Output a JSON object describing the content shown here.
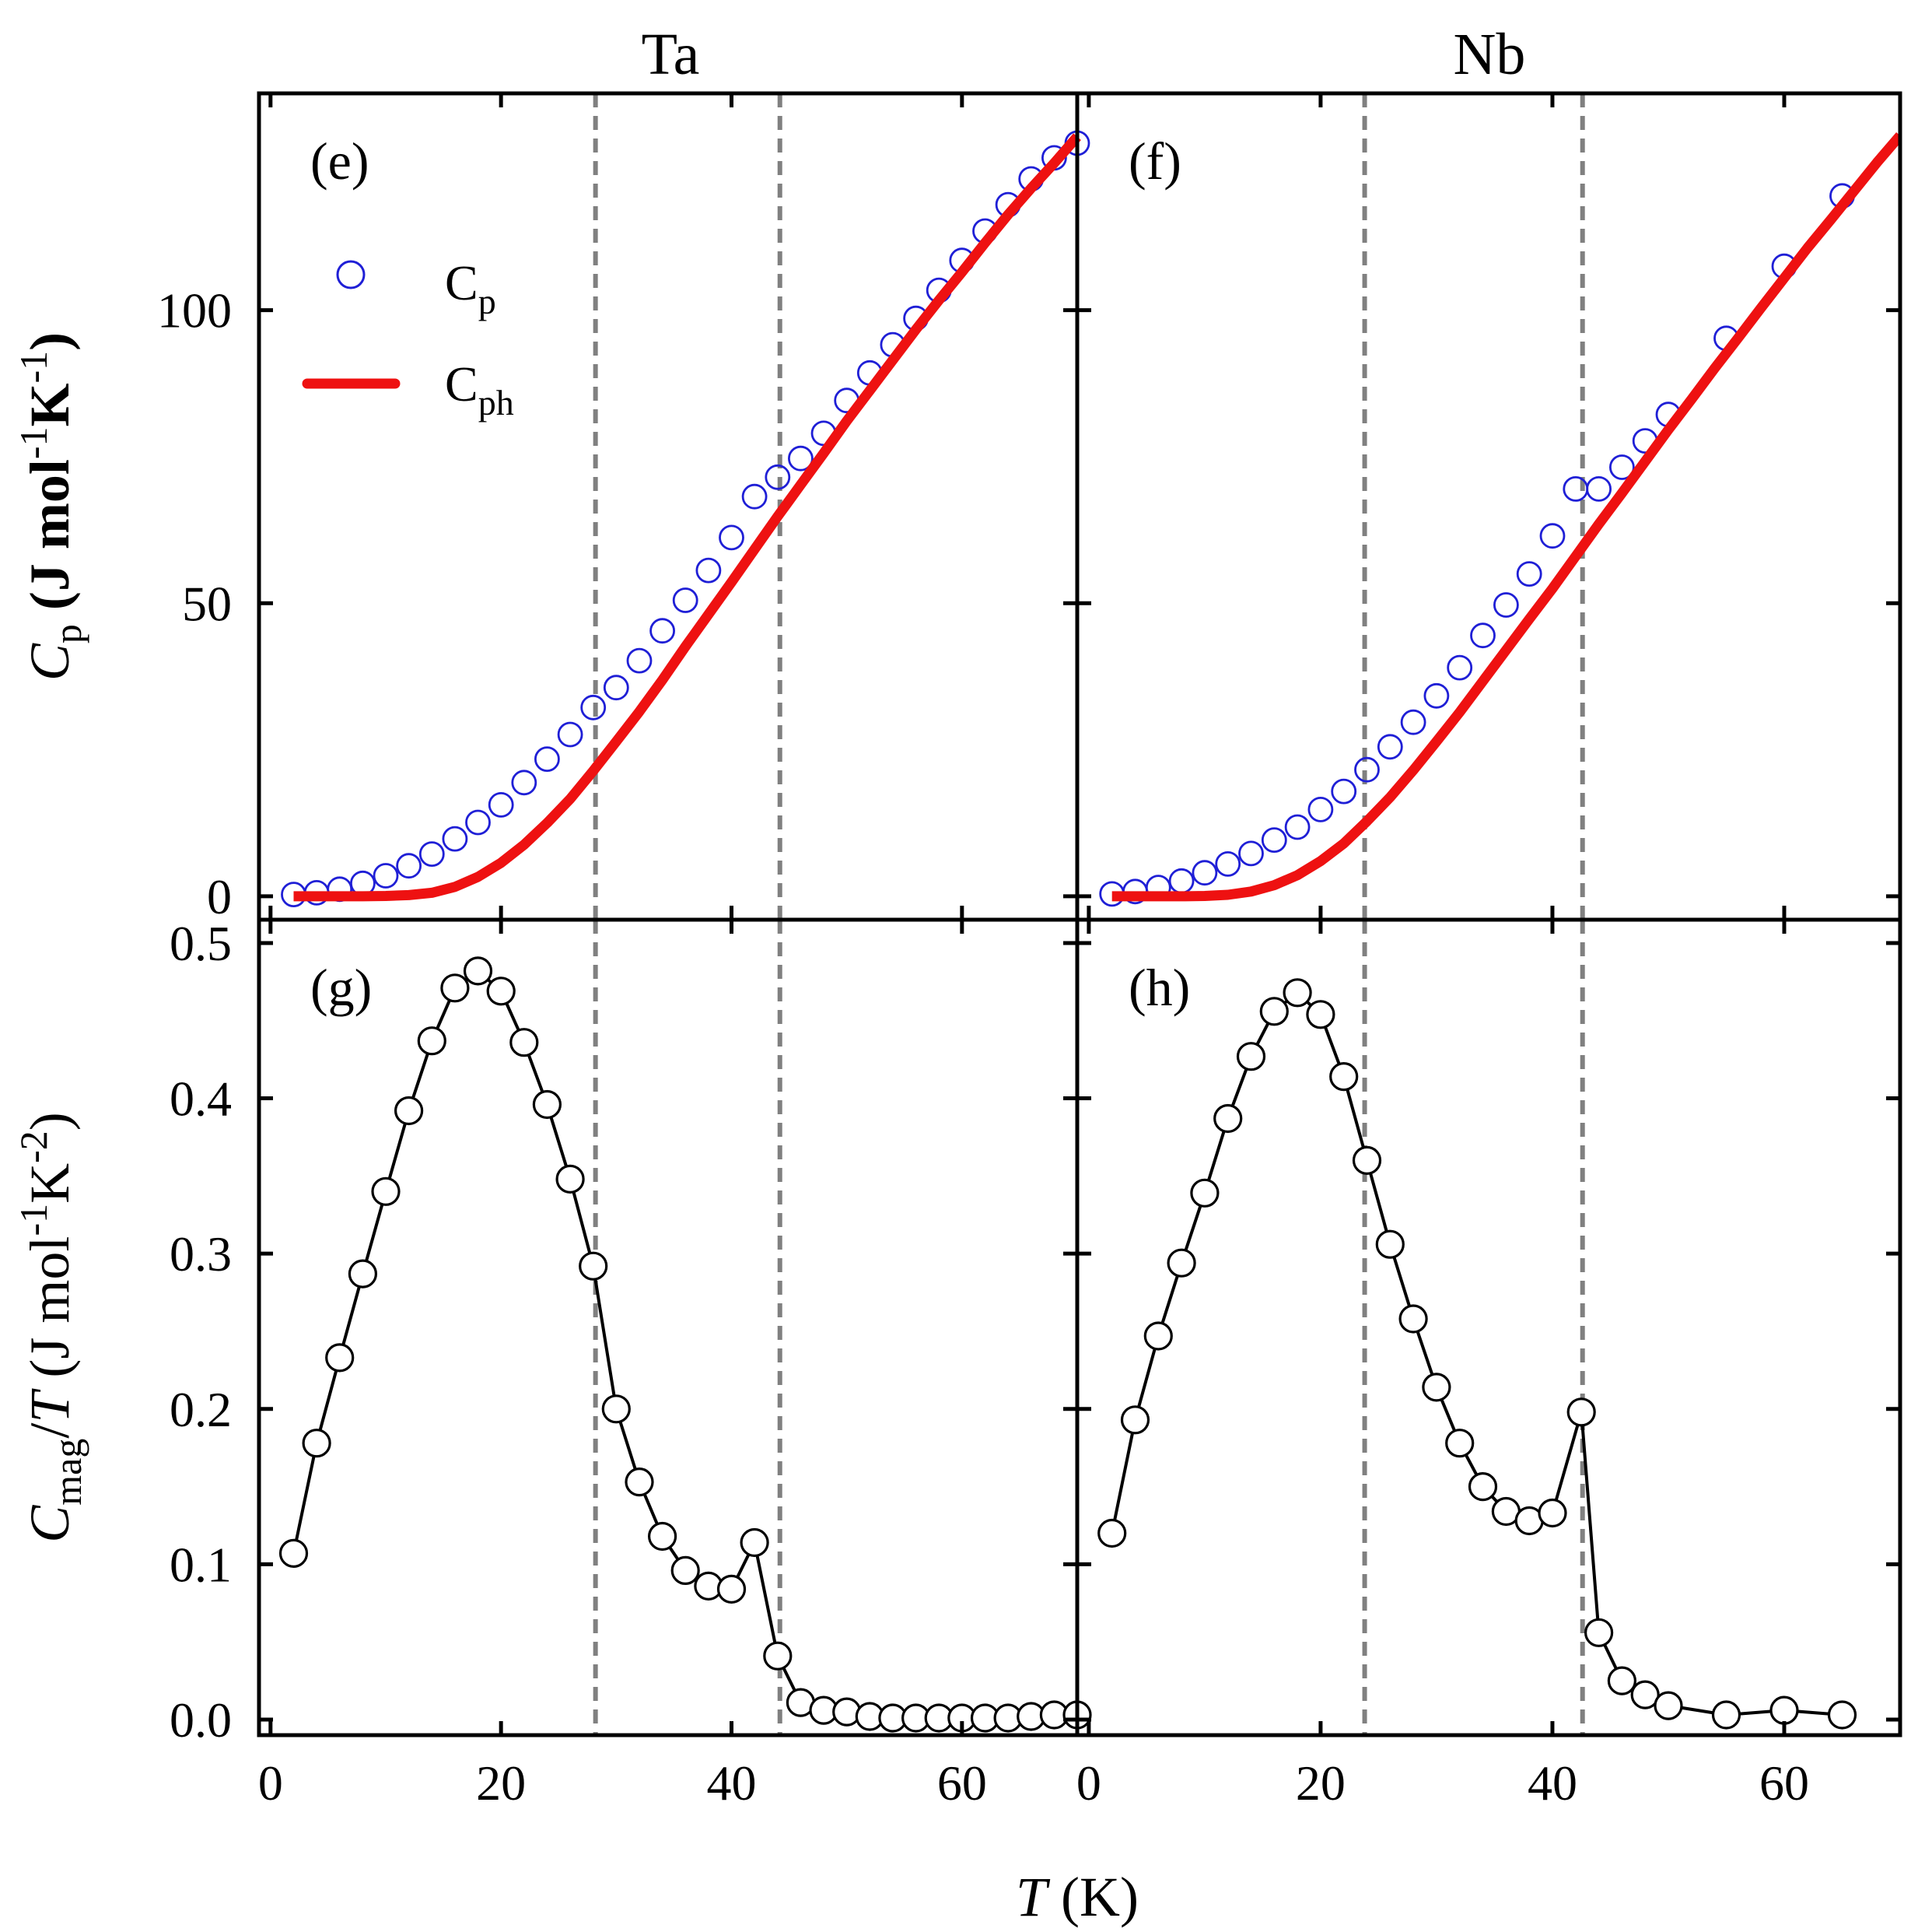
{
  "chart_data": {
    "type": "scatter",
    "columns": [
      "Ta",
      "Nb"
    ],
    "xlabel": {
      "italic": "T",
      "rest": " (K)"
    },
    "x_range": [
      -1,
      70
    ],
    "x_ticks": [
      0,
      20,
      40,
      60
    ],
    "top_row": {
      "ylabel": {
        "italic": "C",
        "sub": "p",
        "rest": " (J mol",
        "sup1": "-1",
        "rest2": "K",
        "sup2": "-1",
        "rest3": ")"
      },
      "y_range": [
        -4,
        137
      ],
      "y_ticks": [
        0,
        50,
        100
      ],
      "legend": [
        {
          "symbol": "open-circle",
          "label": "C",
          "sub": "p",
          "color": "#1f1fd6"
        },
        {
          "symbol": "line",
          "label": "C",
          "sub": "ph",
          "color": "#ee1111"
        }
      ]
    },
    "bottom_row": {
      "ylabel": {
        "italic": "C",
        "sub": "mag",
        "rest": "/",
        "italic2": "T",
        "rest2": " (J mol",
        "sup1": "-1",
        "rest3": "K",
        "sup2": "-2",
        "rest4": ")"
      },
      "y_range": [
        -0.01,
        0.515
      ],
      "y_ticks": [
        0.0,
        0.1,
        0.2,
        0.3,
        0.4,
        0.5
      ],
      "y_tick_labels": [
        "0.0",
        "0.1",
        "0.2",
        "0.3",
        "0.4",
        "0.5"
      ]
    },
    "panels": [
      {
        "id": "e",
        "label": "(e)",
        "column": "Ta",
        "row": "top",
        "dashed_x": [
          28.2,
          44.2
        ],
        "series": [
          {
            "name": "Cp",
            "kind": "markers",
            "color": "#1f1fd6",
            "x": [
              2,
              4,
              6,
              8,
              10,
              12,
              14,
              16,
              18,
              20,
              22,
              24,
              26,
              28,
              30,
              32,
              34,
              36,
              38,
              40,
              42,
              44,
              46,
              48,
              50,
              52,
              54,
              56,
              58,
              60,
              62,
              64,
              66,
              68,
              70
            ],
            "y": [
              0.3,
              0.6,
              1.2,
              2.2,
              3.5,
              5.2,
              7.2,
              9.8,
              12.6,
              15.6,
              19.4,
              23.4,
              27.6,
              32.2,
              35.6,
              40.2,
              45.3,
              50.5,
              55.6,
              61.2,
              68.2,
              71.5,
              74.7,
              79.0,
              84.6,
              89.3,
              94.1,
              98.6,
              103.4,
              108.5,
              113.5,
              118.0,
              122.4,
              126.0,
              128.5
            ]
          },
          {
            "name": "Cph",
            "kind": "line",
            "color": "#ee1111",
            "x": [
              2,
              4,
              6,
              8,
              10,
              12,
              14,
              16,
              18,
              20,
              22,
              24,
              26,
              28,
              30,
              32,
              34,
              36,
              38,
              40,
              42,
              44,
              46,
              48,
              50,
              52,
              54,
              56,
              58,
              60,
              62,
              64,
              66,
              68,
              70
            ],
            "y": [
              0,
              0,
              0,
              0,
              0.05,
              0.2,
              0.6,
              1.6,
              3.3,
              5.7,
              8.8,
              12.5,
              16.6,
              21.4,
              26.4,
              31.5,
              36.9,
              42.6,
              48.1,
              53.6,
              59.2,
              64.8,
              70.2,
              75.6,
              81.1,
              86.3,
              91.5,
              96.7,
              101.7,
              106.5,
              111.5,
              116.3,
              120.8,
              125.1,
              129.6
            ]
          }
        ]
      },
      {
        "id": "f",
        "label": "(f)",
        "column": "Nb",
        "row": "top",
        "dashed_x": [
          23.8,
          42.6
        ],
        "series": [
          {
            "name": "Cp",
            "kind": "markers",
            "color": "#1f1fd6",
            "x": [
              2,
              4,
              6,
              8,
              10,
              12,
              14,
              16,
              18,
              20,
              22,
              24,
              26,
              28,
              30,
              32,
              34,
              36,
              38,
              40,
              42,
              44,
              46,
              48,
              50,
              55,
              60,
              65
            ],
            "y": [
              0.4,
              0.8,
              1.5,
              2.6,
              4.0,
              5.5,
              7.3,
              9.6,
              11.8,
              14.8,
              17.9,
              21.6,
              25.5,
              29.7,
              34.2,
              39.0,
              44.5,
              49.7,
              55.0,
              61.5,
              69.5,
              69.5,
              73.2,
              77.7,
              82.2,
              95.2,
              107.5,
              119.5
            ]
          },
          {
            "name": "Cph",
            "kind": "line",
            "color": "#ee1111",
            "x": [
              2,
              4,
              6,
              8,
              10,
              12,
              14,
              16,
              18,
              20,
              22,
              24,
              26,
              28,
              30,
              32,
              34,
              36,
              38,
              40,
              42,
              44,
              46,
              48,
              50,
              52,
              54,
              56,
              58,
              60,
              62,
              64,
              66,
              68,
              70
            ],
            "y": [
              0,
              0,
              0,
              0,
              0.05,
              0.25,
              0.8,
              1.9,
              3.6,
              6.0,
              9.0,
              12.8,
              16.9,
              21.5,
              26.4,
              31.4,
              36.7,
              42.0,
              47.3,
              52.5,
              58.0,
              63.5,
              68.8,
              74.2,
              79.6,
              84.8,
              90.1,
              95.2,
              100.4,
              105.5,
              110.6,
              115.4,
              120.3,
              125.2,
              129.8
            ]
          }
        ]
      },
      {
        "id": "g",
        "label": "(g)",
        "column": "Ta",
        "row": "bottom",
        "dashed_x": [
          28.2,
          44.2
        ],
        "series": [
          {
            "name": "Cmag/T",
            "kind": "markers+line",
            "color": "#000000",
            "x": [
              2,
              4,
              6,
              8,
              10,
              12,
              14,
              16,
              18,
              20,
              22,
              24,
              26,
              28,
              30,
              32,
              34,
              36,
              38,
              40,
              42,
              44,
              46,
              48,
              50,
              52,
              54,
              56,
              58,
              60,
              62,
              64,
              66,
              68,
              70
            ],
            "y": [
              0.107,
              0.178,
              0.233,
              0.287,
              0.34,
              0.392,
              0.437,
              0.471,
              0.482,
              0.469,
              0.436,
              0.396,
              0.348,
              0.292,
              0.2,
              0.153,
              0.118,
              0.096,
              0.086,
              0.084,
              0.114,
              0.041,
              0.011,
              0.006,
              0.005,
              0.002,
              0.001,
              0.001,
              0.001,
              0.001,
              0.001,
              0.001,
              0.002,
              0.003,
              0.003
            ]
          }
        ]
      },
      {
        "id": "h",
        "label": "(h)",
        "column": "Nb",
        "row": "bottom",
        "dashed_x": [
          23.8,
          42.6
        ],
        "series": [
          {
            "name": "Cmag/T",
            "kind": "markers+line",
            "color": "#000000",
            "x": [
              2,
              4,
              6,
              8,
              10,
              12,
              14,
              16,
              18,
              20,
              22,
              24,
              26,
              28,
              30,
              32,
              34,
              36,
              38,
              40,
              42.5,
              44,
              46,
              48,
              50,
              55,
              60,
              65
            ],
            "y": [
              0.12,
              0.193,
              0.247,
              0.294,
              0.339,
              0.387,
              0.427,
              0.456,
              0.468,
              0.454,
              0.414,
              0.36,
              0.306,
              0.258,
              0.214,
              0.178,
              0.15,
              0.134,
              0.128,
              0.133,
              0.198,
              0.056,
              0.025,
              0.016,
              0.009,
              0.003,
              0.006,
              0.003
            ]
          }
        ]
      }
    ]
  }
}
